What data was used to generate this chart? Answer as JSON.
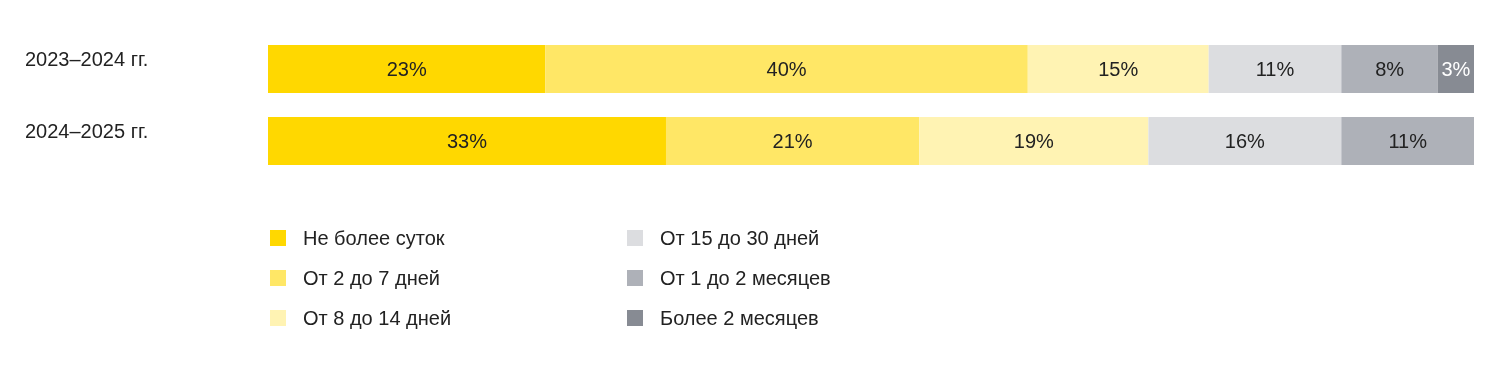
{
  "chart_data": {
    "type": "bar",
    "orientation": "horizontal",
    "stacked": true,
    "legend": "bottom",
    "categories": [
      "2023–2024 гг.",
      "2024–2025 гг."
    ],
    "series": [
      {
        "name": "Не более суток",
        "color": "#ffd800",
        "values": [
          23,
          33
        ],
        "value_labels": [
          "23%",
          "33%"
        ]
      },
      {
        "name": "От 2 до 7 дней",
        "color": "#ffe766",
        "values": [
          40,
          21
        ],
        "value_labels": [
          "40%",
          "21%"
        ]
      },
      {
        "name": "От 8 до 14 дней",
        "color": "#fff3b3",
        "values": [
          15,
          19
        ],
        "value_labels": [
          "15%",
          "19%"
        ]
      },
      {
        "name": "От 15 до 30 дней",
        "color": "#dcdde0",
        "values": [
          11,
          16
        ],
        "value_labels": [
          "11%",
          "16%"
        ]
      },
      {
        "name": "От 1 до 2 месяцев",
        "color": "#aeb1b8",
        "values": [
          8,
          11
        ],
        "value_labels": [
          "8%",
          "11%"
        ]
      },
      {
        "name": "Более 2 месяцев",
        "color": "#878b93",
        "values": [
          3,
          null
        ],
        "value_labels": [
          "3%",
          null
        ]
      }
    ]
  }
}
